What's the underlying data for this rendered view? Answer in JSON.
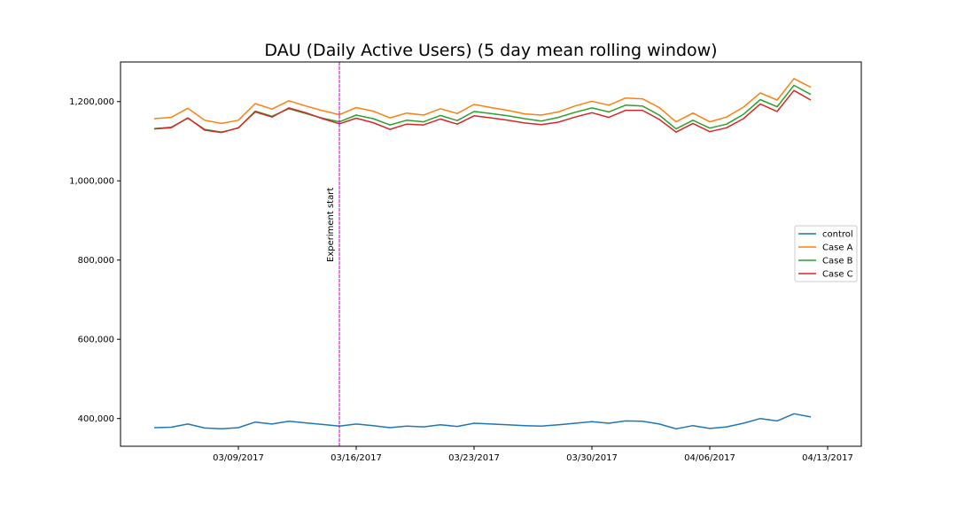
{
  "chart_data": {
    "type": "line",
    "title": "DAU (Daily Active Users) (5 day mean rolling window)",
    "xlabel": "",
    "ylabel": "",
    "x_start": "03/04/2017",
    "x_end": "04/13/2017",
    "x_ticks": [
      "03/09/2017",
      "03/16/2017",
      "03/23/2017",
      "03/30/2017",
      "04/06/2017",
      "04/13/2017"
    ],
    "xlim": [
      "03/02/2017",
      "04/15/2017"
    ],
    "y_ticks": [
      400000,
      600000,
      800000,
      1000000,
      1200000
    ],
    "y_tick_labels": [
      "400,000",
      "600,000",
      "800,000",
      "1,000,000",
      "1,200,000"
    ],
    "ylim": [
      330000,
      1300000
    ],
    "grid": false,
    "legend_position": "center-right",
    "annotation": {
      "text": "Experiment start",
      "date": "03/15/2017",
      "color": "#bf00bf"
    },
    "series": [
      {
        "name": "control",
        "color": "#1f77b4",
        "values": [
          377000,
          378000,
          386000,
          376000,
          374000,
          377000,
          391000,
          386000,
          393000,
          389000,
          385000,
          381000,
          386000,
          382000,
          377000,
          381000,
          379000,
          384000,
          380000,
          388000,
          386000,
          384000,
          382000,
          381000,
          384000,
          388000,
          392000,
          388000,
          394000,
          393000,
          386000,
          374000,
          382000,
          375000,
          379000,
          388000,
          400000,
          394000,
          412000,
          404000
        ]
      },
      {
        "name": "Case A",
        "color": "#ff7f0e",
        "values": [
          1157000,
          1160000,
          1183000,
          1153000,
          1145000,
          1153000,
          1195000,
          1181000,
          1202000,
          1189000,
          1177000,
          1167000,
          1185000,
          1176000,
          1159000,
          1171000,
          1166000,
          1182000,
          1170000,
          1193000,
          1185000,
          1178000,
          1169000,
          1166000,
          1174000,
          1189000,
          1201000,
          1191000,
          1209000,
          1207000,
          1185000,
          1149000,
          1171000,
          1149000,
          1161000,
          1186000,
          1222000,
          1204000,
          1258000,
          1236000
        ]
      },
      {
        "name": "Case B",
        "color": "#2ca02c",
        "values": [
          1132000,
          1135000,
          1158000,
          1130000,
          1123000,
          1133000,
          1176000,
          1163000,
          1182000,
          1170000,
          1158000,
          1149000,
          1166000,
          1157000,
          1141000,
          1153000,
          1149000,
          1165000,
          1152000,
          1175000,
          1170000,
          1164000,
          1157000,
          1151000,
          1160000,
          1173000,
          1184000,
          1174000,
          1191000,
          1189000,
          1166000,
          1131000,
          1153000,
          1133000,
          1143000,
          1168000,
          1205000,
          1187000,
          1241000,
          1218000
        ]
      },
      {
        "name": "Case C",
        "color": "#d62728",
        "values": [
          1131000,
          1134000,
          1159000,
          1128000,
          1122000,
          1134000,
          1174000,
          1161000,
          1184000,
          1172000,
          1157000,
          1144000,
          1158000,
          1147000,
          1130000,
          1143000,
          1141000,
          1156000,
          1143000,
          1164000,
          1159000,
          1153000,
          1146000,
          1142000,
          1148000,
          1161000,
          1172000,
          1160000,
          1178000,
          1178000,
          1155000,
          1123000,
          1145000,
          1124000,
          1134000,
          1157000,
          1194000,
          1175000,
          1228000,
          1204000
        ]
      }
    ]
  }
}
